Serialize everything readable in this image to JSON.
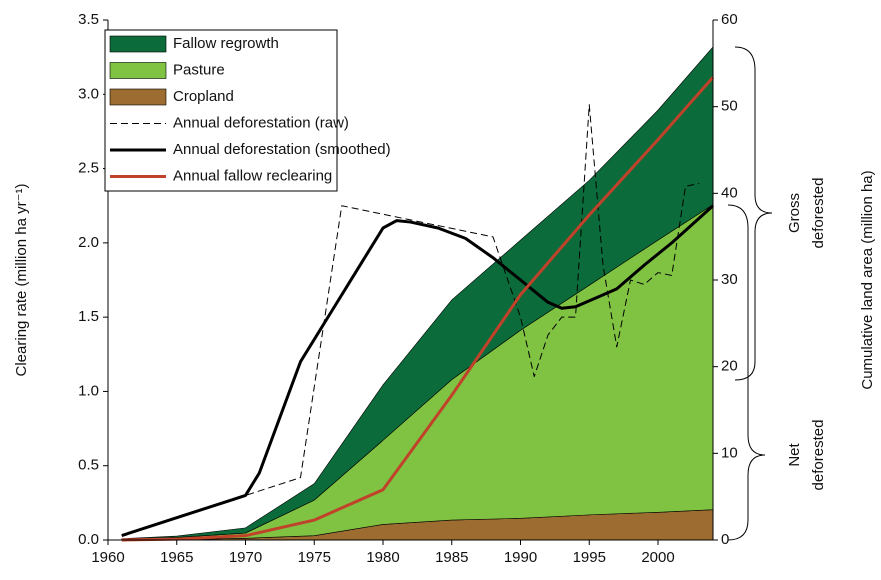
{
  "chart_data": {
    "type": "area",
    "ylabel": "Clearing rate (million ha yr⁻¹)",
    "y2label": "Cumulative land area (million ha)",
    "xlim": [
      1960,
      2004
    ],
    "xticks": [
      1960,
      1965,
      1970,
      1975,
      1980,
      1985,
      1990,
      1995,
      2000
    ],
    "ylim": [
      0,
      3.5
    ],
    "yticks": [
      {
        "value": 0,
        "label": "0.0"
      },
      0.5,
      {
        "value": 1,
        "label": "1.0"
      },
      1.5,
      {
        "value": 2,
        "label": "2.0"
      },
      2.5,
      {
        "value": 3,
        "label": "3.0"
      },
      3.5
    ],
    "y2lim": [
      0,
      60
    ],
    "y2ticks": [
      0,
      10,
      20,
      30,
      40,
      50,
      60
    ],
    "legend": "upper left",
    "series": [
      {
        "name": "Fallow regrowth",
        "color": "#0b6b3a",
        "kind": "area",
        "axis": "y2",
        "x": [
          1961,
          1965,
          1970,
          1975,
          1980,
          1985,
          1990,
          1995,
          2000,
          2004
        ],
        "values": [
          0.05,
          0.15,
          0.6,
          1.9,
          6.4,
          9.2,
          10.4,
          12.1,
          15.0,
          18.2
        ]
      },
      {
        "name": "Pasture",
        "color": "#80c242",
        "kind": "area",
        "axis": "y2",
        "x": [
          1961,
          1965,
          1970,
          1975,
          1980,
          1985,
          1990,
          1995,
          2000,
          2004
        ],
        "values": [
          0.1,
          0.25,
          0.6,
          4.1,
          9.7,
          16.2,
          21.7,
          26.5,
          31.4,
          35.2
        ]
      },
      {
        "name": "Cropland",
        "color": "#9c6c30",
        "kind": "area",
        "axis": "y2",
        "x": [
          1961,
          1965,
          1970,
          1975,
          1980,
          1985,
          1990,
          1995,
          2000,
          2004
        ],
        "values": [
          0,
          0.05,
          0.2,
          0.5,
          1.8,
          2.3,
          2.5,
          2.9,
          3.2,
          3.5
        ]
      },
      {
        "name": "Annual deforestation (raw)",
        "color": "#000000",
        "kind": "line",
        "axis": "y",
        "dashed": true,
        "x": [
          1961,
          1970,
          1974,
          1977,
          1988,
          1990,
          1991,
          1992,
          1993,
          1994,
          1995,
          1996,
          1997,
          1998,
          1999,
          2000,
          2001,
          2002,
          2003
        ],
        "values": [
          0.03,
          0.3,
          0.42,
          2.25,
          2.04,
          1.5,
          1.1,
          1.38,
          1.5,
          1.5,
          2.93,
          1.85,
          1.3,
          1.75,
          1.72,
          1.8,
          1.78,
          2.38,
          2.4
        ]
      },
      {
        "name": "Annual deforestation (smoothed)",
        "color": "#000000",
        "kind": "line",
        "axis": "y",
        "x": [
          1961,
          1965,
          1969,
          1970,
          1971,
          1972,
          1974,
          1976,
          1978,
          1980,
          1981,
          1982,
          1984,
          1986,
          1988,
          1990,
          1992,
          1993,
          1994,
          1996,
          1997,
          1999,
          2001,
          2004
        ],
        "values": [
          0.03,
          0.15,
          0.27,
          0.3,
          0.45,
          0.7,
          1.2,
          1.5,
          1.8,
          2.1,
          2.15,
          2.14,
          2.1,
          2.03,
          1.9,
          1.75,
          1.6,
          1.56,
          1.57,
          1.65,
          1.69,
          1.85,
          2.0,
          2.25
        ]
      },
      {
        "name": "Annual fallow reclearing",
        "color": "#c0422a",
        "kind": "line",
        "axis": "y2",
        "x": [
          1961,
          1965,
          1970,
          1975,
          1980,
          1985,
          1990,
          1995,
          2000,
          2004
        ],
        "values": [
          0,
          0.1,
          0.5,
          2.3,
          5.8,
          16.7,
          28.3,
          37.5,
          46.2,
          53.4
        ]
      }
    ],
    "annotations": [
      {
        "lines": [
          "Gross",
          "deforested"
        ]
      },
      {
        "lines": [
          "Net",
          "deforested"
        ]
      }
    ]
  }
}
